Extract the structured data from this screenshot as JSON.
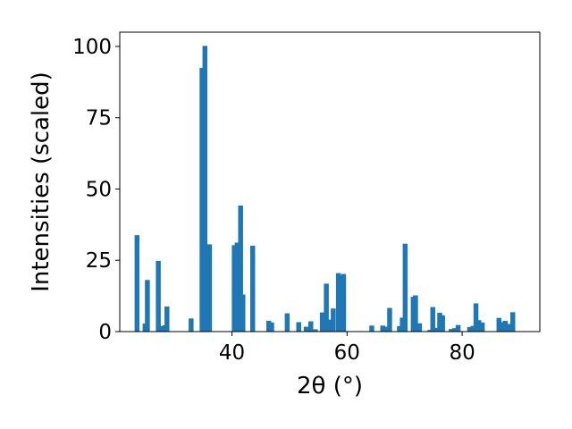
{
  "chart_data": {
    "type": "bar",
    "xlabel": "2θ (°)",
    "ylabel": "Intensities (scaled)",
    "xlim": [
      20.5,
      93.5
    ],
    "ylim": [
      0,
      105
    ],
    "xticks": [
      40,
      60,
      80
    ],
    "yticks": [
      0,
      25,
      50,
      75,
      100
    ],
    "bar_color": "#1f77b4",
    "bar_width": 0.85,
    "series": [
      {
        "x": [
          23.5,
          24.9,
          25.3,
          27.2,
          27.6,
          28.3,
          28.7,
          32.9,
          34.8,
          35.3,
          36.1,
          40.4,
          40.9,
          41.5,
          41.9,
          43.6,
          46.4,
          46.9,
          49.6,
          51.6,
          52.9,
          53.7,
          54.5,
          55.7,
          56.4,
          57.1,
          57.6,
          58.5,
          58.9,
          59.4,
          64.3,
          66.2,
          66.7,
          67.4,
          69.1,
          69.6,
          70.1,
          71.5,
          71.9,
          72.6,
          74.4,
          74.9,
          75.5,
          76.1,
          76.6,
          78.1,
          78.7,
          79.3,
          81.3,
          81.9,
          82.4,
          82.9,
          83.5,
          86.4,
          86.9,
          87.5,
          88.2,
          88.8
        ],
        "y": [
          33.8,
          2.8,
          18.1,
          24.8,
          1.9,
          2.2,
          8.8,
          4.6,
          92.5,
          100.2,
          30.6,
          30.3,
          31.2,
          44.2,
          13.0,
          30.1,
          3.8,
          3.2,
          6.4,
          3.3,
          1.7,
          3.6,
          0.8,
          6.7,
          16.8,
          4.2,
          8.1,
          20.5,
          19.6,
          20.2,
          2.1,
          2.1,
          1.7,
          8.3,
          1.9,
          4.9,
          30.8,
          12.2,
          12.7,
          2.9,
          0.6,
          8.6,
          1.3,
          6.6,
          5.7,
          0.9,
          1.2,
          2.3,
          1.6,
          2.0,
          9.9,
          4.0,
          3.2,
          4.8,
          3.3,
          3.8,
          2.7,
          6.8
        ]
      }
    ]
  }
}
